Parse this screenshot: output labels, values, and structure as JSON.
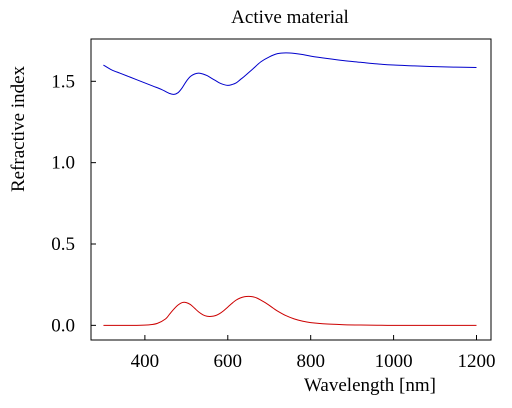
{
  "chart_data": {
    "type": "line",
    "title": "Active material",
    "xlabel": "Wavelength [nm]",
    "ylabel": "Refractive index",
    "xlim": [
      270,
      1235
    ],
    "ylim": [
      -0.09,
      1.76
    ],
    "x_ticks": [
      400,
      600,
      800,
      1000,
      1200
    ],
    "x_tick_labels": [
      "400",
      "600",
      "800",
      "1000",
      "1200"
    ],
    "y_ticks": [
      0.0,
      0.5,
      1.0,
      1.5
    ],
    "y_tick_labels": [
      "0.0",
      "0.5",
      "1.0",
      "1.5"
    ],
    "grid": false,
    "legend": "none",
    "series": [
      {
        "color": "#0000cc",
        "x": [
          300,
          320,
          340,
          360,
          380,
          400,
          420,
          440,
          460,
          470,
          480,
          490,
          500,
          510,
          520,
          530,
          540,
          550,
          560,
          570,
          580,
          590,
          600,
          610,
          620,
          630,
          640,
          660,
          680,
          700,
          720,
          740,
          760,
          780,
          800,
          840,
          880,
          920,
          960,
          1000,
          1050,
          1100,
          1150,
          1200
        ],
        "y": [
          1.6,
          1.57,
          1.55,
          1.53,
          1.51,
          1.49,
          1.47,
          1.45,
          1.425,
          1.42,
          1.43,
          1.46,
          1.5,
          1.53,
          1.545,
          1.55,
          1.545,
          1.535,
          1.52,
          1.505,
          1.49,
          1.48,
          1.475,
          1.48,
          1.49,
          1.51,
          1.53,
          1.575,
          1.62,
          1.65,
          1.67,
          1.675,
          1.672,
          1.665,
          1.655,
          1.64,
          1.627,
          1.617,
          1.607,
          1.6,
          1.595,
          1.59,
          1.587,
          1.585
        ]
      },
      {
        "color": "#cc0000",
        "x": [
          300,
          340,
          380,
          410,
          430,
          450,
          460,
          470,
          480,
          490,
          500,
          510,
          520,
          530,
          540,
          550,
          560,
          570,
          580,
          590,
          600,
          610,
          620,
          630,
          640,
          650,
          660,
          670,
          680,
          690,
          700,
          710,
          720,
          740,
          760,
          780,
          800,
          840,
          880,
          920,
          960,
          1000,
          1100,
          1200
        ],
        "y": [
          0.0,
          0.0,
          0.0,
          0.003,
          0.012,
          0.04,
          0.07,
          0.1,
          0.125,
          0.14,
          0.14,
          0.128,
          0.105,
          0.082,
          0.065,
          0.056,
          0.055,
          0.06,
          0.072,
          0.09,
          0.112,
          0.135,
          0.155,
          0.168,
          0.176,
          0.178,
          0.176,
          0.168,
          0.155,
          0.14,
          0.123,
          0.105,
          0.088,
          0.06,
          0.04,
          0.026,
          0.017,
          0.008,
          0.004,
          0.002,
          0.001,
          0.0,
          0.0,
          0.0
        ]
      }
    ]
  }
}
